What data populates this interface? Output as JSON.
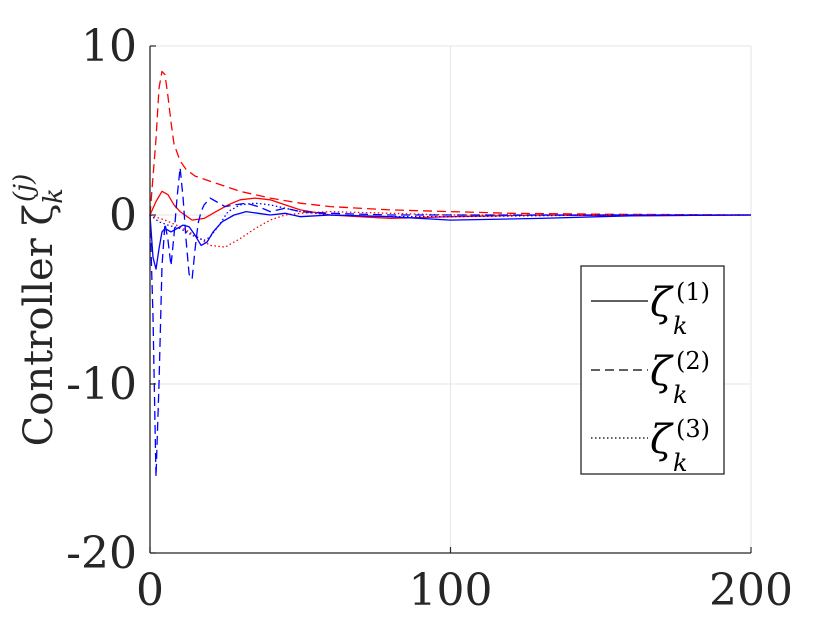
{
  "chart_data": {
    "type": "line",
    "xlim": [
      0,
      200
    ],
    "ylim": [
      -20,
      10
    ],
    "xticks": [
      "0",
      "100",
      "200"
    ],
    "yticks": [
      "10",
      "0",
      "-10",
      "-20"
    ],
    "ylabel": "Controller ζ",
    "ylabel_super": "(j)",
    "ylabel_sub": "k",
    "grid": true,
    "legend": {
      "placement": "right",
      "entries": [
        {
          "symbol": "ζ",
          "super": "(1)",
          "sub": "k",
          "style": "solid"
        },
        {
          "symbol": "ζ",
          "super": "(2)",
          "sub": "k",
          "style": "dashed"
        },
        {
          "symbol": "ζ",
          "super": "(3)",
          "sub": "k",
          "style": "dotted"
        }
      ]
    },
    "colors": {
      "red": "#ff0000",
      "blue": "#0000ff"
    },
    "series": [
      {
        "color": "#ff0000",
        "style": "solid",
        "x": [
          0,
          2,
          4,
          6,
          8,
          10,
          14,
          18,
          22,
          26,
          30,
          35,
          40,
          45,
          50,
          60,
          80,
          100,
          130,
          160,
          200
        ],
        "y": [
          0,
          0.8,
          1.4,
          1.2,
          0.6,
          0.2,
          -0.3,
          -0.2,
          0.2,
          0.6,
          0.9,
          1.0,
          0.9,
          0.6,
          0.3,
          0.0,
          -0.2,
          -0.1,
          0.0,
          -0.05,
          0
        ]
      },
      {
        "color": "#ff0000",
        "style": "dashed",
        "x": [
          0,
          2,
          3,
          4,
          5,
          6,
          7,
          8,
          10,
          12,
          15,
          20,
          25,
          30,
          40,
          50,
          60,
          80,
          100,
          120,
          150,
          180,
          200
        ],
        "y": [
          0,
          4.5,
          7.5,
          8.5,
          8.3,
          7.0,
          5.5,
          4.2,
          3.2,
          2.7,
          2.3,
          2.0,
          1.7,
          1.4,
          1.0,
          0.7,
          0.5,
          0.3,
          0.2,
          0.1,
          0.05,
          0.02,
          0
        ]
      },
      {
        "color": "#ff0000",
        "style": "dotted",
        "x": [
          0,
          5,
          10,
          15,
          20,
          25,
          30,
          35,
          40,
          45,
          50,
          60,
          80,
          100,
          140,
          200
        ],
        "y": [
          0,
          -0.3,
          -0.7,
          -1.2,
          -1.8,
          -1.9,
          -1.4,
          -0.8,
          -0.3,
          0.0,
          0.1,
          0.2,
          0.1,
          0.0,
          0.0,
          0
        ]
      },
      {
        "color": "#0000ff",
        "style": "solid",
        "x": [
          0,
          1,
          2,
          3,
          4,
          5,
          7,
          9,
          11,
          13,
          15,
          17,
          19,
          21,
          24,
          28,
          32,
          36,
          40,
          45,
          50,
          60,
          80,
          100,
          130,
          160,
          200
        ],
        "y": [
          0,
          -2.5,
          -3.2,
          -2.0,
          -1.0,
          -0.8,
          -1.0,
          -0.8,
          -0.6,
          -0.7,
          -1.2,
          -1.8,
          -1.6,
          -1.0,
          -0.4,
          0.0,
          0.2,
          0.1,
          0.0,
          0.1,
          -0.1,
          0.0,
          -0.1,
          -0.3,
          -0.2,
          -0.05,
          0
        ]
      },
      {
        "color": "#0000ff",
        "style": "dashed",
        "x": [
          0,
          1,
          2,
          3,
          4,
          5,
          6,
          7,
          8,
          9,
          10,
          11,
          12,
          13,
          14,
          15,
          16,
          17,
          18,
          20,
          22,
          25,
          28,
          32,
          36,
          40,
          45,
          50,
          60,
          80,
          100,
          140,
          200
        ],
        "y": [
          0,
          -6.0,
          -15.5,
          -10.0,
          -3.0,
          -0.5,
          -1.5,
          -3.0,
          -1.2,
          1.0,
          2.8,
          1.0,
          -1.5,
          -3.5,
          -3.8,
          -2.0,
          -0.5,
          0.2,
          0.6,
          1.0,
          0.8,
          0.5,
          0.6,
          0.7,
          0.5,
          0.2,
          0.4,
          0.2,
          0.1,
          0.0,
          0.0,
          0.0,
          0
        ]
      },
      {
        "color": "#0000ff",
        "style": "dotted",
        "x": [
          0,
          3,
          6,
          10,
          14,
          18,
          20,
          23,
          26,
          30,
          35,
          40,
          45,
          50,
          60,
          80,
          100,
          150,
          200
        ],
        "y": [
          0,
          -0.4,
          -0.6,
          -0.8,
          -1.2,
          -1.5,
          -1.3,
          -0.6,
          0.2,
          0.6,
          0.7,
          0.6,
          0.4,
          0.2,
          0.0,
          -0.1,
          -0.1,
          0.0,
          0
        ]
      }
    ]
  }
}
